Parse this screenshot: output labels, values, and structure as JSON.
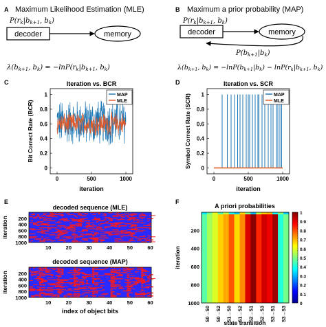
{
  "panels": {
    "A": {
      "letter": "A",
      "title": "Maximum Likelihood Estimation (MLE)",
      "prob_label": "P(r_k|b_{k+1}, b_k)",
      "decoder": "decoder",
      "memory": "memory",
      "equation": "λ(b_{k+1}, b_k) = −lnP(r_k|b_{k+1}, b_k)"
    },
    "B": {
      "letter": "B",
      "title": "Maximum a prior probability (MAP)",
      "prob_label": "P(r_k|b_{k+1}, b_k)",
      "decoder": "decoder",
      "memory": "memory",
      "prior_label": "P(b_{k+1}|b_k)",
      "equation": "λ(b_{k+1}, b_k) = −lnP(b_{k+1}|b_k) − lnP(r_k|b_{k+1}, b_k)"
    },
    "C": {
      "letter": "C"
    },
    "D": {
      "letter": "D"
    },
    "E": {
      "letter": "E"
    },
    "F": {
      "letter": "F"
    }
  },
  "chart_data": [
    {
      "id": "C",
      "type": "line",
      "title": "Iteration vs. BCR",
      "xlabel": "iteration",
      "ylabel": "Bit Correct Rate (BCR)",
      "xlim": [
        -100,
        1100
      ],
      "ylim": [
        -0.08,
        1.08
      ],
      "xticks": [
        0,
        500,
        1000
      ],
      "yticks": [
        0,
        0.2,
        0.4,
        0.6,
        0.8,
        1
      ],
      "legend_position": "top-right",
      "series": [
        {
          "name": "MAP",
          "color": "#1f77b4",
          "x_range": [
            0,
            1000
          ],
          "mean": 0.62,
          "spread": 0.28,
          "min": 0.08,
          "max": 1.0
        },
        {
          "name": "MLE",
          "color": "#e15a2a",
          "x_range": [
            0,
            1000
          ],
          "mean": 0.6,
          "spread": 0.12,
          "min": 0.35,
          "max": 0.85
        }
      ]
    },
    {
      "id": "D",
      "type": "line",
      "title": "Iteration vs. SCR",
      "xlabel": "iteration",
      "ylabel": "Symbol Correct Rate (SCR)",
      "xlim": [
        -100,
        1100
      ],
      "ylim": [
        -0.08,
        1.08
      ],
      "xticks": [
        0,
        500,
        1000
      ],
      "yticks": [
        0,
        0.2,
        0.4,
        0.6,
        0.8,
        1
      ],
      "legend_position": "top-right",
      "series": [
        {
          "name": "MAP",
          "color": "#1f77b4",
          "baseline": 0,
          "spikes_to": 1,
          "spike_x": [
            120,
            195,
            250,
            300,
            345,
            380,
            420,
            470,
            500,
            520,
            560,
            600,
            640,
            655,
            700,
            740,
            790,
            830,
            860,
            910,
            930,
            960,
            985
          ]
        },
        {
          "name": "MLE",
          "color": "#e15a2a",
          "constant": 0
        }
      ]
    },
    {
      "id": "E1",
      "type": "heatmap",
      "title": "decoded sequence (MLE)",
      "ylabel": "iteration",
      "yticks": [
        200,
        400,
        600,
        800,
        1000
      ],
      "xticks": [
        10,
        20,
        30,
        40,
        50,
        60
      ],
      "x_range": [
        1,
        60
      ],
      "y_range": [
        1,
        1000
      ],
      "colors": {
        "0": "#2a2aff",
        "1": "#ff1a1a"
      }
    },
    {
      "id": "E2",
      "type": "heatmap",
      "title": "decoded sequence (MAP)",
      "xlabel": "index of object bits",
      "ylabel": "iteration",
      "yticks": [
        200,
        400,
        600,
        800,
        1000
      ],
      "xticks": [
        10,
        20,
        30,
        40,
        50,
        60
      ],
      "x_range": [
        1,
        60
      ],
      "y_range": [
        1,
        1000
      ],
      "colors": {
        "0": "#2a2aff",
        "1": "#ff1a1a"
      }
    },
    {
      "id": "F",
      "type": "heatmap",
      "title": "A priori probabilities",
      "xlabel": "state transition",
      "ylabel": "iteration",
      "yticks": [
        200,
        400,
        600,
        800,
        1000
      ],
      "y_range": [
        1,
        1000
      ],
      "categories": [
        "S0→S0",
        "S0→S2",
        "S1→S0",
        "S1→S2",
        "S2→S1",
        "S2→S3",
        "S3→S1",
        "S3→S3"
      ],
      "values": [
        0.5,
        0.63,
        0.75,
        0.7,
        0.95,
        0.88,
        0.93,
        0.45
      ],
      "colorbar_ticks": [
        0,
        0.1,
        0.2,
        0.3,
        0.4,
        0.5,
        0.6,
        0.7,
        0.8,
        0.9,
        1
      ],
      "clim": [
        0,
        1
      ],
      "colormap": "jet"
    }
  ]
}
